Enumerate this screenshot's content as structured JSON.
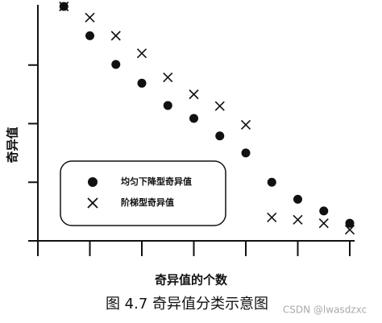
{
  "chart_data": {
    "type": "scatter",
    "x": [
      1,
      2,
      3,
      4,
      5,
      6,
      7,
      8,
      9,
      10,
      11,
      12
    ],
    "series": [
      {
        "name": "均匀下降型奇异值",
        "marker": "circle",
        "color": "#111111",
        "values": [
          4.0,
          3.5,
          3.01,
          2.69,
          2.31,
          2.09,
          1.79,
          1.5,
          1.0,
          0.71,
          0.51,
          0.3
        ]
      },
      {
        "name": "阶梯型奇异值",
        "marker": "x",
        "color": "#111111",
        "values": [
          4.0,
          3.81,
          3.5,
          3.2,
          2.79,
          2.5,
          2.3,
          1.98,
          0.4,
          0.36,
          0.3,
          0.19
        ]
      }
    ],
    "xlim": [
      0,
      12
    ],
    "ylim": [
      0,
      4
    ],
    "xticks": [
      2,
      4,
      6,
      8,
      10,
      12
    ],
    "yticks": [
      1,
      2,
      3
    ],
    "xlabel": "奇异值的个数",
    "ylabel": "奇异值",
    "caption": "图 4.7  奇异值分类示意图",
    "watermark": "CSDN @lwasdzxc"
  }
}
